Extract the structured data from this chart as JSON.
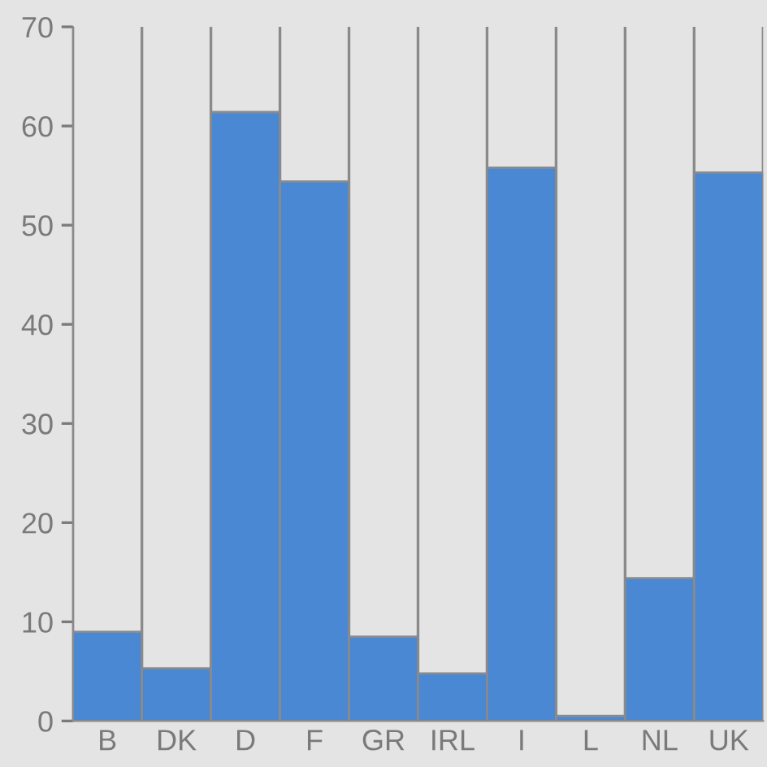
{
  "chart_data": {
    "type": "bar",
    "categories": [
      "B",
      "DK",
      "D",
      "F",
      "GR",
      "IRL",
      "I",
      "L",
      "NL",
      "UK"
    ],
    "values": [
      9.0,
      5.3,
      61.4,
      54.4,
      8.5,
      4.8,
      55.8,
      0.5,
      14.4,
      55.3
    ],
    "color": "#4a88d4",
    "ylim": [
      0,
      70
    ],
    "yticks": [
      0,
      10,
      20,
      30,
      40,
      50,
      60,
      70
    ],
    "grid": "x",
    "legend": false
  }
}
